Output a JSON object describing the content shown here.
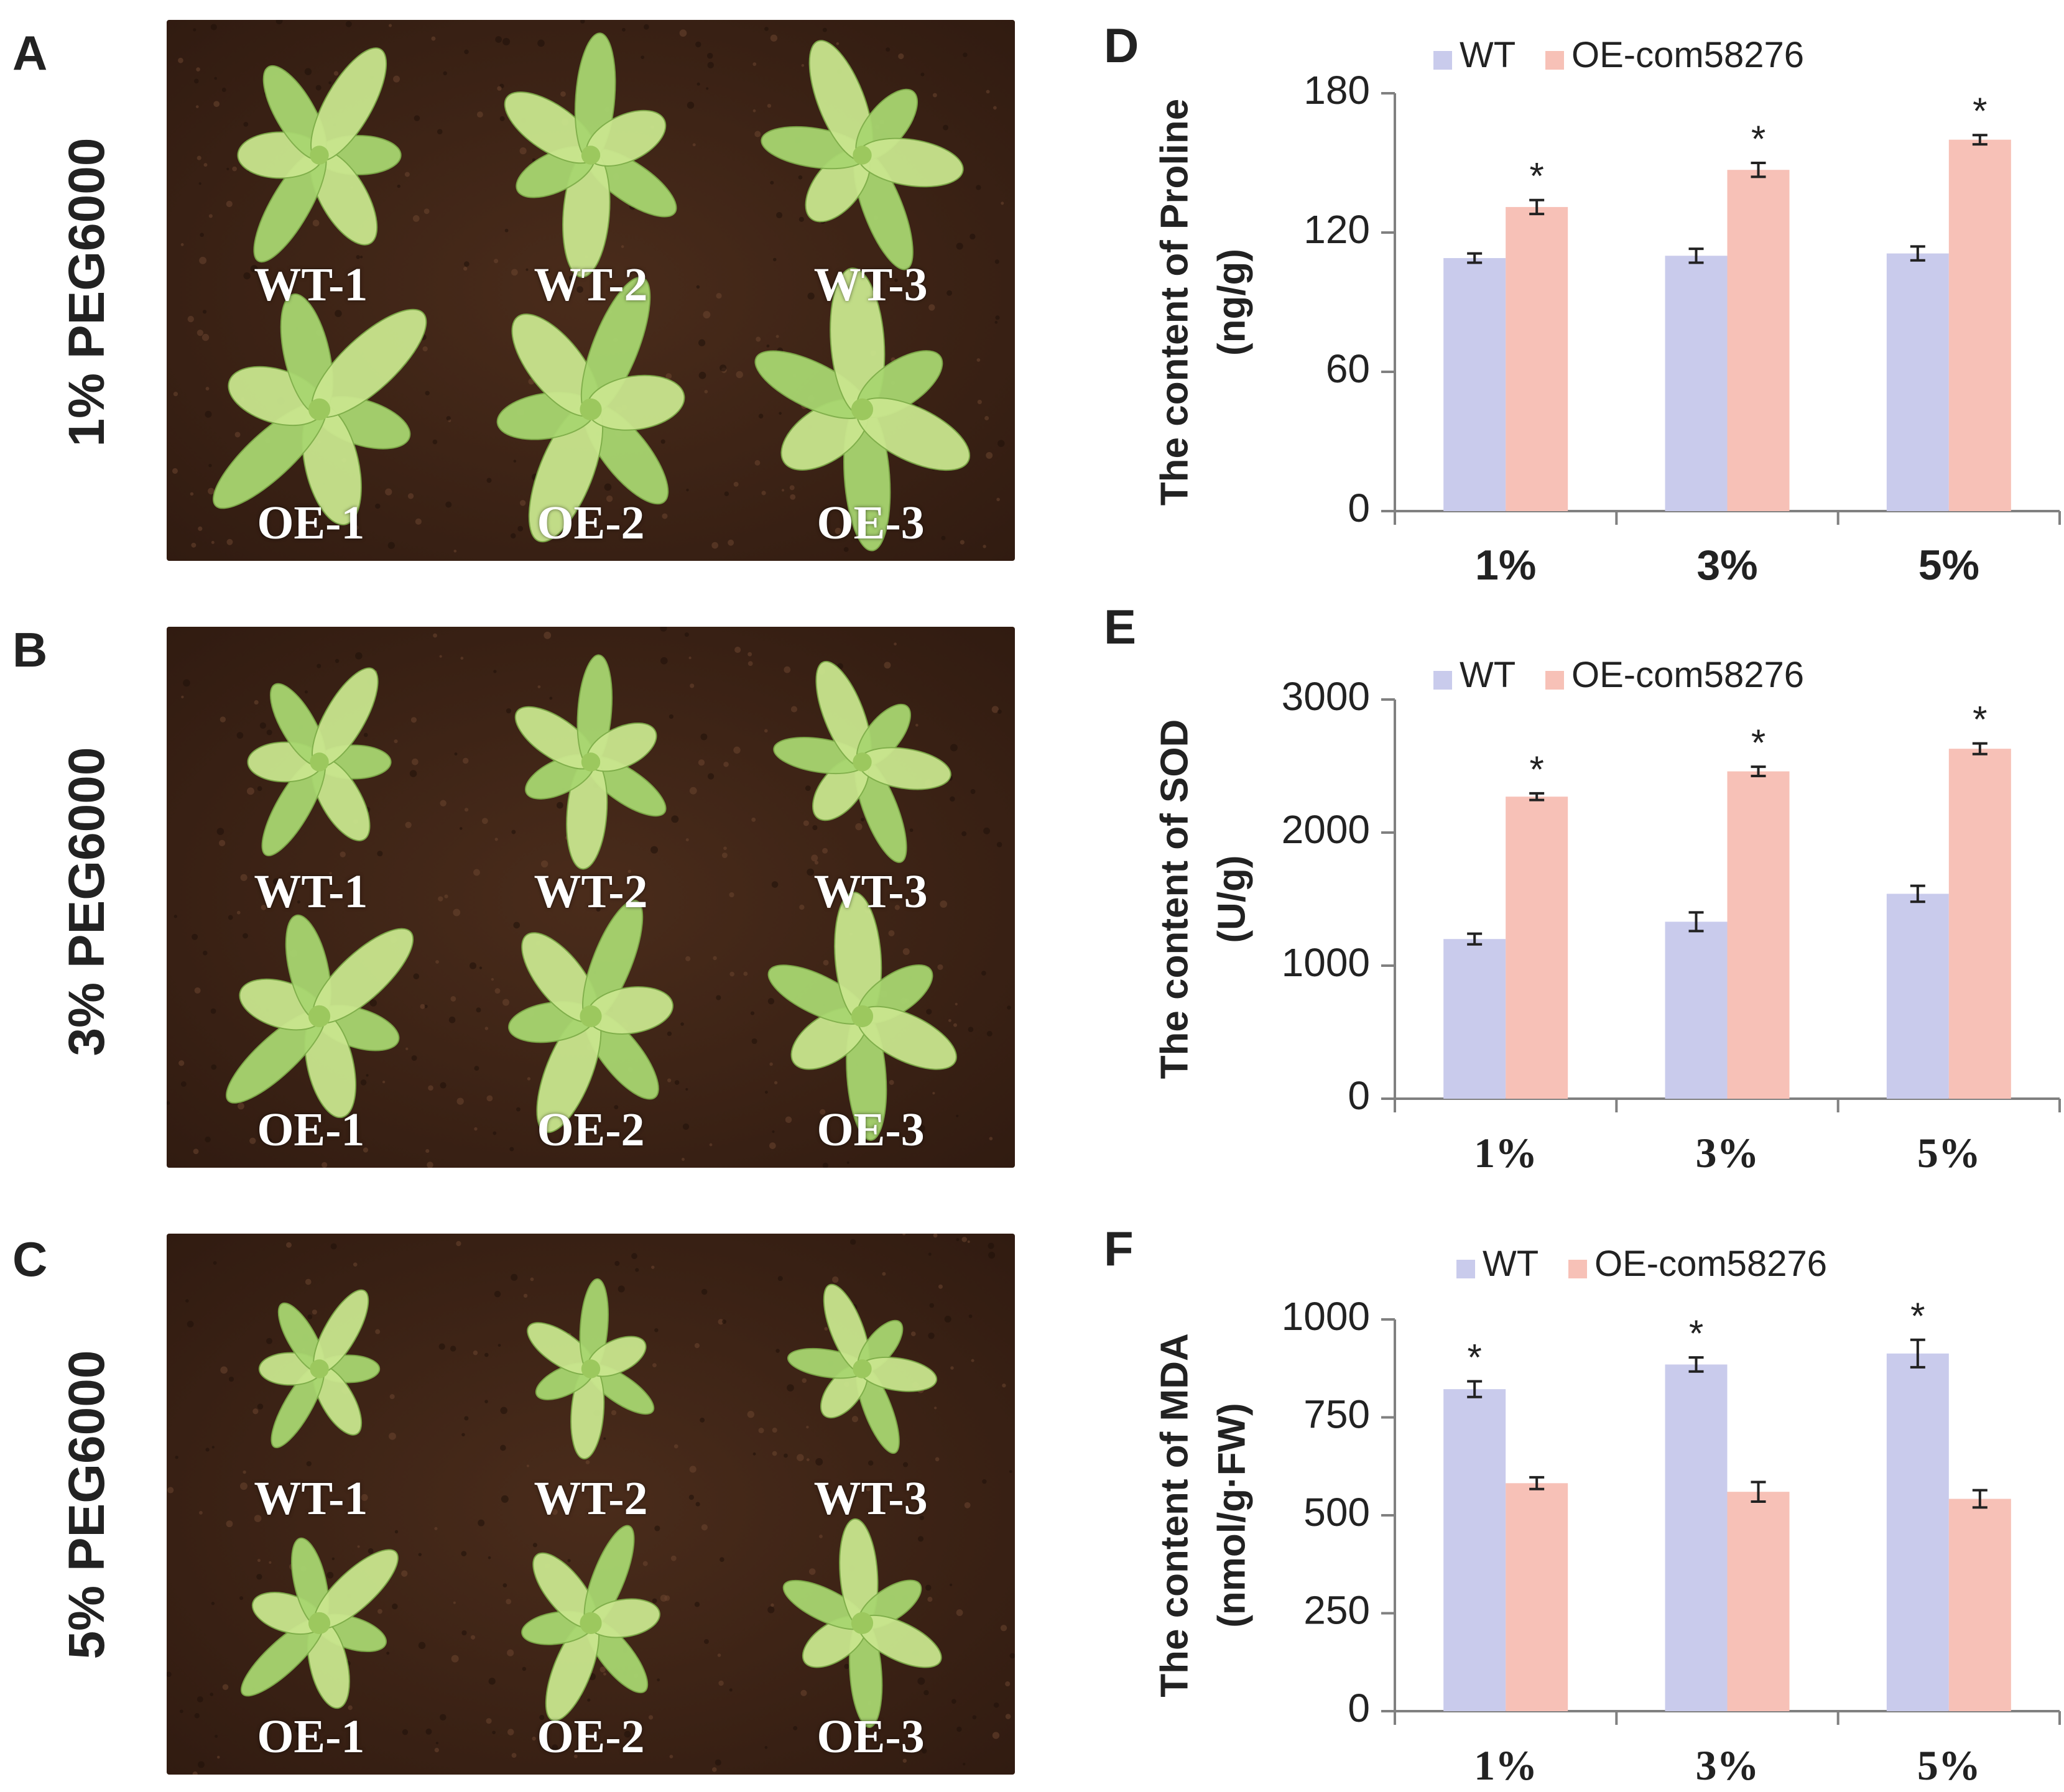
{
  "colors": {
    "wt": "#c9cbec",
    "oe": "#f7c1b7",
    "axis": "#808080",
    "text": "#222222",
    "soil_dark": "#2f1a10",
    "soil_mid": "#4a2c1b",
    "leaf": "#a8d670",
    "leaf_light": "#c9e68e"
  },
  "photo_panels": [
    {
      "letter": "A",
      "row_label": "1%  PEG6000",
      "top_labels": [
        "WT-1",
        "WT-2",
        "WT-3"
      ],
      "bottom_labels": [
        "OE-1",
        "OE-2",
        "OE-3"
      ]
    },
    {
      "letter": "B",
      "row_label": "3%  PEG6000",
      "top_labels": [
        "WT-1",
        "WT-2",
        "WT-3"
      ],
      "bottom_labels": [
        "OE-1",
        "OE-2",
        "OE-3"
      ]
    },
    {
      "letter": "C",
      "row_label": "5%  PEG6000",
      "top_labels": [
        "WT-1",
        "WT-2",
        "WT-3"
      ],
      "bottom_labels": [
        "OE-1",
        "OE-2",
        "OE-3"
      ]
    }
  ],
  "chart_data": [
    {
      "letter": "D",
      "type": "bar",
      "categories": [
        "1%",
        "3%",
        "5%"
      ],
      "series": [
        {
          "name": "WT",
          "values": [
            109,
            110,
            111
          ],
          "errors": [
            2,
            3,
            3
          ],
          "significant": [
            false,
            false,
            false
          ]
        },
        {
          "name": "OE-com58276",
          "values": [
            131,
            147,
            160
          ],
          "errors": [
            3,
            3,
            2
          ],
          "significant": [
            true,
            true,
            true
          ]
        }
      ],
      "ylabel_line1": "The content of Proline",
      "ylabel_line2": "(ng/g)",
      "ylim": [
        0,
        180
      ],
      "yticks": [
        0,
        60,
        120,
        180
      ],
      "significance_marker": "*",
      "legend_position": "top"
    },
    {
      "letter": "E",
      "type": "bar",
      "categories": [
        "1%",
        "3%",
        "5%"
      ],
      "series": [
        {
          "name": "WT",
          "values": [
            1200,
            1330,
            1540
          ],
          "errors": [
            40,
            70,
            60
          ],
          "significant": [
            false,
            false,
            false
          ]
        },
        {
          "name": "OE-com58276",
          "values": [
            2270,
            2460,
            2630
          ],
          "errors": [
            25,
            35,
            40
          ],
          "significant": [
            true,
            true,
            true
          ]
        }
      ],
      "ylabel_line1": "The content of SOD",
      "ylabel_line2": "(U/g)",
      "ylim": [
        0,
        3000
      ],
      "yticks": [
        0,
        1000,
        2000,
        3000
      ],
      "significance_marker": "*",
      "legend_position": "top"
    },
    {
      "letter": "F",
      "type": "bar",
      "categories": [
        "1%",
        "3%",
        "5%"
      ],
      "series": [
        {
          "name": "WT",
          "values": [
            822,
            885,
            913
          ],
          "errors": [
            20,
            18,
            35
          ],
          "significant": [
            true,
            true,
            true
          ]
        },
        {
          "name": "OE-com58276",
          "values": [
            582,
            560,
            542
          ],
          "errors": [
            15,
            25,
            22
          ],
          "significant": [
            false,
            false,
            false
          ]
        }
      ],
      "ylabel_line1": "The content of MDA",
      "ylabel_line2": "(nmol/g·FW)",
      "ylim": [
        0,
        1000
      ],
      "yticks": [
        0,
        250,
        500,
        750,
        1000
      ],
      "significance_marker": "*",
      "legend_position": "top"
    }
  ]
}
